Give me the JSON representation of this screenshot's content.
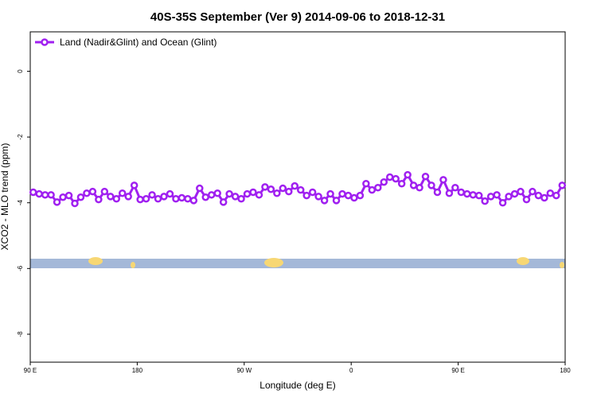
{
  "chart_data": {
    "type": "line",
    "title": "40S-35S September (Ver 9)   2014-09-06 to 2018-12-31",
    "x_label": "Longitude (deg E)",
    "y_label": "XCO2 - MLO trend (ppm)",
    "xlim": [
      90,
      540
    ],
    "ylim": [
      -8.85,
      1.2
    ],
    "xticks": [
      {
        "value": 90,
        "label": "90 E"
      },
      180,
      {
        "value": 270,
        "label": "90 W"
      },
      {
        "value": 360,
        "label": "0"
      },
      {
        "value": 450,
        "label": "90 E"
      },
      {
        "value": 540,
        "label": "180"
      }
    ],
    "yticks": [
      0,
      -2,
      -4,
      -6,
      -8
    ],
    "legend": "top-left",
    "x": [
      92.5,
      97.5,
      102.5,
      107.5,
      112.5,
      117.5,
      122.5,
      127.5,
      132.5,
      137.5,
      142.5,
      147.5,
      152.5,
      157.5,
      162.5,
      167.5,
      172.5,
      177.5,
      182.5,
      187.5,
      192.5,
      197.5,
      202.5,
      207.5,
      212.5,
      217.5,
      222.5,
      227.5,
      232.5,
      237.5,
      242.5,
      247.5,
      252.5,
      257.5,
      262.5,
      267.5,
      272.5,
      277.5,
      282.5,
      287.5,
      292.5,
      297.5,
      302.5,
      307.5,
      312.5,
      317.5,
      322.5,
      327.5,
      332.5,
      337.5,
      342.5,
      347.5,
      352.5,
      357.5,
      362.5,
      367.5,
      372.5,
      377.5,
      382.5,
      387.5,
      392.5,
      397.5,
      402.5,
      407.5,
      412.5,
      417.5,
      422.5,
      427.5,
      432.5,
      437.5,
      442.5,
      447.5,
      452.5,
      457.5,
      462.5,
      467.5,
      472.5,
      477.5,
      482.5,
      487.5,
      492.5,
      497.5,
      502.5,
      507.5,
      512.5,
      517.5,
      522.5,
      527.5,
      532.5,
      537.5
    ],
    "series": [
      {
        "name": "Land (Nadir&Glint) and Ocean (Glint)",
        "color": "#a020f0",
        "values": [
          -3.68,
          -3.73,
          -3.76,
          -3.76,
          -3.98,
          -3.83,
          -3.78,
          -4.02,
          -3.83,
          -3.71,
          -3.66,
          -3.9,
          -3.66,
          -3.81,
          -3.88,
          -3.71,
          -3.81,
          -3.47,
          -3.9,
          -3.88,
          -3.76,
          -3.88,
          -3.81,
          -3.73,
          -3.88,
          -3.85,
          -3.88,
          -3.93,
          -3.56,
          -3.83,
          -3.76,
          -3.71,
          -3.98,
          -3.73,
          -3.81,
          -3.88,
          -3.73,
          -3.68,
          -3.76,
          -3.52,
          -3.59,
          -3.71,
          -3.56,
          -3.66,
          -3.49,
          -3.61,
          -3.78,
          -3.68,
          -3.81,
          -3.93,
          -3.73,
          -3.93,
          -3.73,
          -3.78,
          -3.85,
          -3.78,
          -3.42,
          -3.61,
          -3.54,
          -3.37,
          -3.22,
          -3.27,
          -3.42,
          -3.15,
          -3.47,
          -3.54,
          -3.2,
          -3.47,
          -3.68,
          -3.3,
          -3.71,
          -3.54,
          -3.68,
          -3.73,
          -3.76,
          -3.78,
          -3.95,
          -3.81,
          -3.76,
          -4.0,
          -3.81,
          -3.73,
          -3.66,
          -3.9,
          -3.66,
          -3.78,
          -3.85,
          -3.71,
          -3.78,
          -3.47
        ]
      }
    ]
  }
}
